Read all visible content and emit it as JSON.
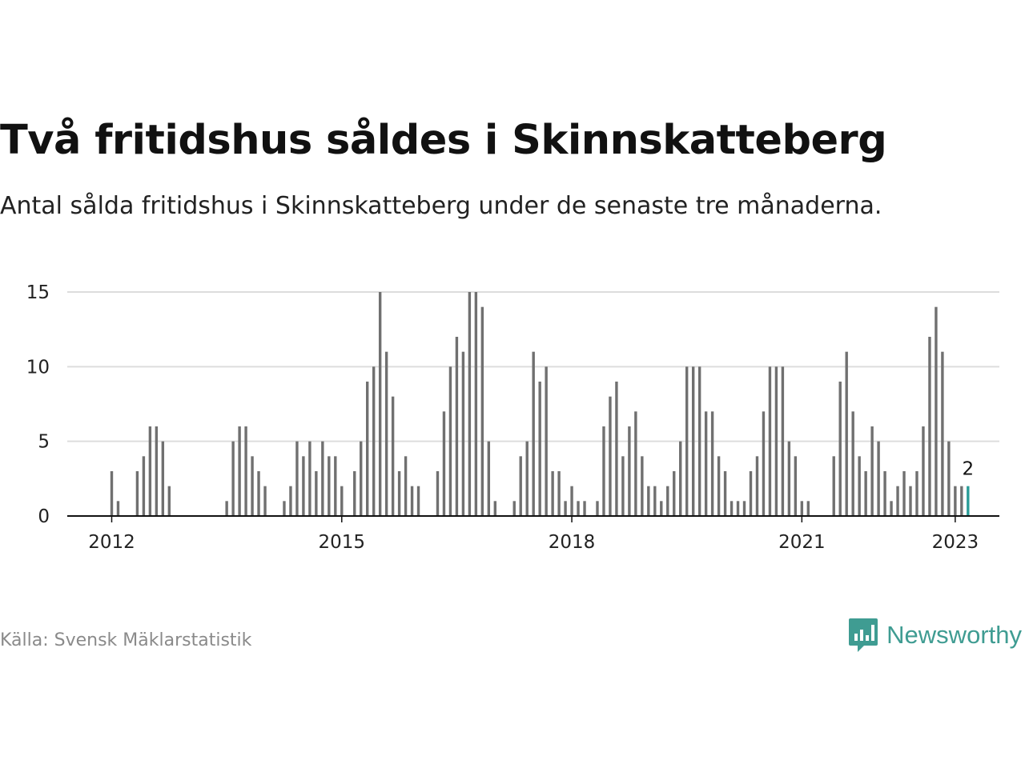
{
  "header": {
    "title": "Två fritidshus såldes i Skinnskatteberg",
    "subtitle": "Antal sålda fritidshus i Skinnskatteberg under de senaste tre månaderna."
  },
  "footer": {
    "source": "Källa: Svensk Mäklarstatistik",
    "brand": "Newsworthy"
  },
  "colors": {
    "bar": "#707070",
    "highlight": "#2a9d98",
    "grid": "#dddddd",
    "brand": "#3f9c92"
  },
  "icons": {
    "logo": "newsworthy-logo-icon"
  },
  "chart_data": {
    "type": "bar",
    "title": "Två fritidshus såldes i Skinnskatteberg",
    "subtitle": "Antal sålda fritidshus i Skinnskatteberg under de senaste tre månaderna.",
    "xlabel": "",
    "ylabel": "",
    "ylim": [
      0,
      15
    ],
    "yticks": [
      0,
      5,
      10,
      15
    ],
    "xticks": [
      "2012",
      "2015",
      "2018",
      "2021",
      "2023"
    ],
    "grid": true,
    "highlight_label": "2",
    "start": "2012-01",
    "values": [
      3,
      1,
      null,
      null,
      3,
      4,
      6,
      6,
      5,
      2,
      null,
      null,
      null,
      null,
      null,
      null,
      null,
      null,
      1,
      5,
      6,
      6,
      4,
      3,
      2,
      null,
      null,
      1,
      2,
      5,
      4,
      5,
      3,
      5,
      4,
      4,
      2,
      null,
      3,
      5,
      9,
      10,
      15,
      11,
      8,
      3,
      4,
      2,
      2,
      null,
      null,
      3,
      7,
      10,
      12,
      11,
      15,
      15,
      14,
      5,
      1,
      null,
      null,
      1,
      4,
      5,
      11,
      9,
      10,
      3,
      3,
      1,
      2,
      1,
      1,
      null,
      1,
      6,
      8,
      9,
      4,
      6,
      7,
      4,
      2,
      2,
      1,
      2,
      3,
      5,
      10,
      10,
      10,
      7,
      7,
      4,
      3,
      1,
      1,
      1,
      3,
      4,
      7,
      10,
      10,
      10,
      5,
      4,
      1,
      1,
      null,
      null,
      null,
      4,
      9,
      11,
      7,
      4,
      3,
      6,
      5,
      3,
      1,
      2,
      3,
      2,
      3,
      6,
      12,
      14,
      11,
      5,
      2,
      2,
      2
    ]
  }
}
